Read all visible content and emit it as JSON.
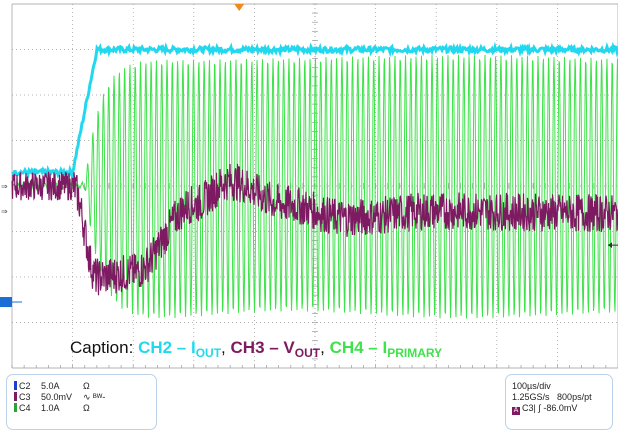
{
  "caption": {
    "label": "Caption:",
    "ch2_prefix": "CH2 – I",
    "ch2_sub": "OUT",
    "ch3_prefix": "CH3 – V",
    "ch3_sub": "OUT",
    "ch4_prefix": "CH4 – I",
    "ch4_sub": "PRIMARY",
    "sep": ","
  },
  "channels": [
    {
      "name": "C2",
      "scale": "5.0A",
      "unit": "Ω",
      "color": "#1a3fd6"
    },
    {
      "name": "C3",
      "scale": "50.0mV",
      "unit": "∿ ᴮᵂ-",
      "color": "#7d1a62"
    },
    {
      "name": "C4",
      "scale": "1.0A",
      "unit": "Ω",
      "color": "#2da23a"
    }
  ],
  "timebase": {
    "time_div": "100µs/div",
    "sample": "1.25GS/s",
    "resolution": "800ps/pt",
    "trigger_source": "C3",
    "trigger_slope": "∫",
    "trigger_level": "-86.0mV"
  },
  "colors": {
    "ch2_trace": "#22d8ee",
    "ch3_trace": "#7d1a62",
    "ch4_trace": "#3ee24a",
    "grid": "#9a9a9a",
    "trigger_marker": "#f08a1c",
    "ch2_ground_marker": "#1a6fd6"
  },
  "chart_data": {
    "type": "line",
    "grid": {
      "x_divisions": 10,
      "y_divisions": 8
    },
    "time_per_div_us": 100,
    "series": [
      {
        "name": "CH2 – IOUT",
        "kind": "step",
        "description_points_div": [
          [
            0,
            4.3
          ],
          [
            1.0,
            4.3
          ],
          [
            1.4,
            7.0
          ],
          [
            10,
            7.0
          ]
        ]
      },
      {
        "name": "CH3 – VOUT",
        "kind": "damped",
        "description_points_div": [
          [
            0,
            4.0
          ],
          [
            1.0,
            4.0
          ],
          [
            1.4,
            2.0
          ],
          [
            2.0,
            2.1
          ],
          [
            3.0,
            3.6
          ],
          [
            3.6,
            4.1
          ],
          [
            4.5,
            3.6
          ],
          [
            5.5,
            3.3
          ],
          [
            7.0,
            3.45
          ],
          [
            10,
            3.4
          ]
        ]
      },
      {
        "name": "CH4 – IPRIMARY",
        "kind": "oscillation",
        "description_points_div": [
          [
            0,
            4.0
          ],
          [
            1.2,
            4.0
          ],
          [
            1.5,
            6.9
          ],
          [
            10,
            6.9
          ]
        ]
      }
    ]
  }
}
